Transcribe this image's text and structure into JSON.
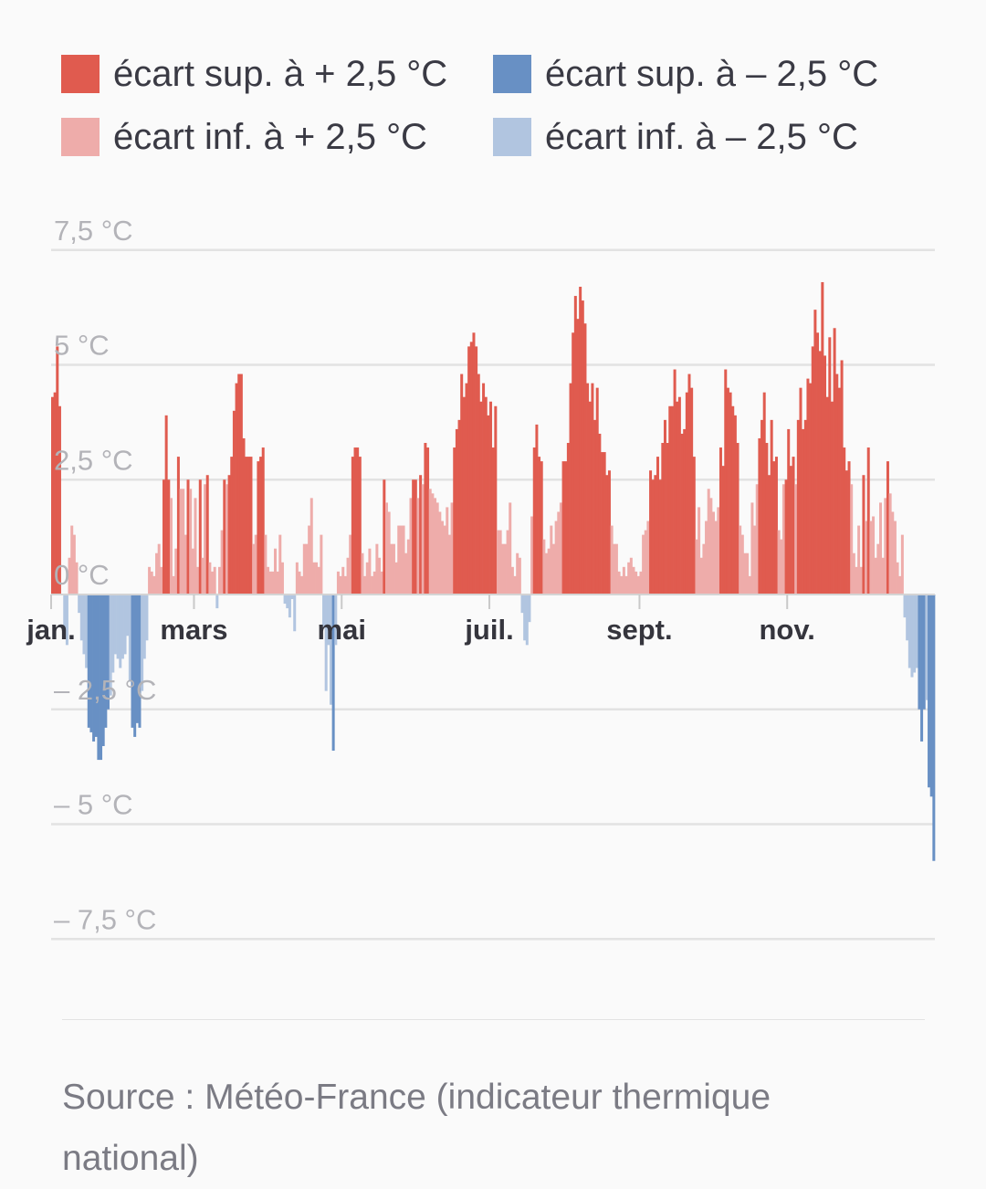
{
  "legend": [
    {
      "label": "écart sup. à + 2,5 °C",
      "color": "#e05b4f"
    },
    {
      "label": "écart sup. à – 2,5 °C",
      "color": "#6890c4"
    },
    {
      "label": "écart inf. à + 2,5 °C",
      "color": "#eeacaa"
    },
    {
      "label": "écart inf. à – 2,5 °C",
      "color": "#b1c5e0"
    }
  ],
  "source": "Source : Météo-France (indicateur thermique national)",
  "chart_data": {
    "type": "bar",
    "title": "",
    "xlabel": "",
    "ylabel": "",
    "ylim": [
      -7.5,
      7.5
    ],
    "grid": true,
    "legend_position": "top",
    "y_ticks": [
      {
        "value": 7.5,
        "label": "7,5 °C"
      },
      {
        "value": 5,
        "label": "5 °C"
      },
      {
        "value": 2.5,
        "label": "2,5 °C"
      },
      {
        "value": 0,
        "label": "0 °C"
      },
      {
        "value": -2.5,
        "label": "– 2,5 °C"
      },
      {
        "value": -5,
        "label": "– 5 °C"
      },
      {
        "value": -7.5,
        "label": "– 7,5 °C"
      }
    ],
    "x_ticks": [
      {
        "day": 1,
        "label": "jan."
      },
      {
        "day": 60,
        "label": "mars"
      },
      {
        "day": 121,
        "label": "mai"
      },
      {
        "day": 182,
        "label": "juil."
      },
      {
        "day": 244,
        "label": "sept."
      },
      {
        "day": 305,
        "label": "nov."
      }
    ],
    "days": 365,
    "series": [
      {
        "name": "écart",
        "values": [
          4.3,
          4.4,
          5.4,
          4.1,
          0.0,
          -0.9,
          -1.1,
          0.8,
          1.5,
          1.3,
          0.7,
          -0.4,
          -1.0,
          -1.3,
          -1.6,
          -2.9,
          -3.0,
          -3.2,
          -3.1,
          -3.6,
          -3.6,
          -3.3,
          -2.9,
          -2.5,
          -2.2,
          -1.7,
          -1.3,
          -1.4,
          -1.6,
          -1.4,
          -1.3,
          -0.9,
          -1.9,
          -2.9,
          -3.1,
          -2.8,
          -2.9,
          -2.1,
          -1.4,
          -1.0,
          0.6,
          0.5,
          0.4,
          0.9,
          1.1,
          0.6,
          2.5,
          3.9,
          2.5,
          2.1,
          0.4,
          1.0,
          3.0,
          2.3,
          2.3,
          1.3,
          2.5,
          2.3,
          1.0,
          2.1,
          0.6,
          2.5,
          0.8,
          2.4,
          2.6,
          0.7,
          0.5,
          0.6,
          -0.3,
          0.6,
          1.4,
          2.5,
          2.4,
          2.6,
          3.0,
          4.0,
          4.6,
          4.8,
          4.8,
          3.4,
          3.0,
          3.0,
          3.0,
          1.1,
          1.3,
          2.9,
          3.0,
          3.2,
          1.3,
          0.6,
          0.5,
          0.5,
          1.0,
          0.5,
          1.3,
          0.7,
          -0.2,
          -0.3,
          -0.5,
          -0.1,
          -0.8,
          0.7,
          0.5,
          0.4,
          1.1,
          1.1,
          1.5,
          2.1,
          0.7,
          0.7,
          0.6,
          1.3,
          -0.7,
          -2.1,
          -1.1,
          -2.4,
          -3.4,
          -1.1,
          0.5,
          0.4,
          0.6,
          0.4,
          0.8,
          1.3,
          3.0,
          3.2,
          3.2,
          3.0,
          0.9,
          0.4,
          0.7,
          1.0,
          0.4,
          0.5,
          1.1,
          0.8,
          0.5,
          2.5,
          2.0,
          1.8,
          1.1,
          1.1,
          0.7,
          1.5,
          1.5,
          1.5,
          0.9,
          1.2,
          2.1,
          2.5,
          2.5,
          2.1,
          2.6,
          2.4,
          3.3,
          3.2,
          2.3,
          2.2,
          2.1,
          2.0,
          1.8,
          1.6,
          1.5,
          1.9,
          1.3,
          2.0,
          3.2,
          3.6,
          3.8,
          4.8,
          4.3,
          4.6,
          5.4,
          5.5,
          5.7,
          5.4,
          4.8,
          4.2,
          4.6,
          4.3,
          3.9,
          4.2,
          3.2,
          4.1,
          1.4,
          1.4,
          1.1,
          1.1,
          1.4,
          2.0,
          0.6,
          0.4,
          0.9,
          0.8,
          -0.4,
          -1.0,
          -1.1,
          -0.6,
          1.7,
          3.2,
          3.7,
          3.0,
          2.9,
          1.2,
          0.9,
          1.0,
          1.5,
          1.1,
          1.6,
          1.8,
          2.0,
          2.9,
          2.9,
          3.3,
          4.6,
          5.7,
          6.5,
          6.0,
          6.7,
          6.4,
          5.9,
          4.6,
          4.2,
          4.6,
          3.8,
          4.5,
          3.5,
          3.1,
          3.1,
          2.6,
          2.7,
          1.5,
          1.1,
          1.1,
          0.5,
          0.4,
          0.6,
          0.4,
          0.7,
          0.8,
          0.6,
          0.5,
          0.4,
          0.5,
          1.3,
          1.4,
          1.6,
          2.7,
          2.5,
          2.6,
          3.0,
          2.5,
          3.3,
          3.8,
          3.3,
          4.1,
          4.1,
          4.9,
          4.2,
          4.3,
          3.5,
          3.6,
          4.4,
          4.8,
          4.5,
          3.0,
          1.2,
          1.9,
          0.8,
          1.1,
          1.6,
          2.3,
          2.1,
          1.8,
          1.6,
          1.9,
          3.2,
          2.8,
          4.9,
          4.5,
          4.4,
          4.1,
          3.9,
          3.3,
          1.5,
          1.3,
          0.9,
          0.9,
          0.4,
          2.0,
          1.5,
          2.4,
          3.4,
          3.8,
          4.4,
          3.3,
          2.6,
          3.8,
          2.9,
          3.0,
          1.4,
          1.2,
          2.4,
          2.5,
          3.6,
          2.8,
          3.0,
          2.4,
          3.8,
          4.5,
          3.6,
          3.8,
          4.7,
          4.6,
          5.4,
          6.2,
          5.7,
          5.3,
          6.8,
          5.2,
          4.3,
          5.6,
          4.2,
          5.8,
          4.8,
          4.5,
          5.1,
          3.2,
          2.7,
          2.9,
          2.4,
          0.9,
          0.6,
          1.5,
          0.6,
          2.6,
          1.6,
          3.2,
          1.6,
          1.7,
          0.8,
          1.1,
          2.0,
          0.8,
          2.1,
          2.9,
          2.2,
          1.8,
          1.6,
          0.7,
          0.4,
          1.3,
          -0.5,
          -1.0,
          -1.6,
          -1.8,
          -1.7,
          -1.6,
          -2.5,
          -3.2,
          -2.5,
          -2.3,
          -4.2,
          -4.4,
          -5.8
        ]
      }
    ]
  }
}
